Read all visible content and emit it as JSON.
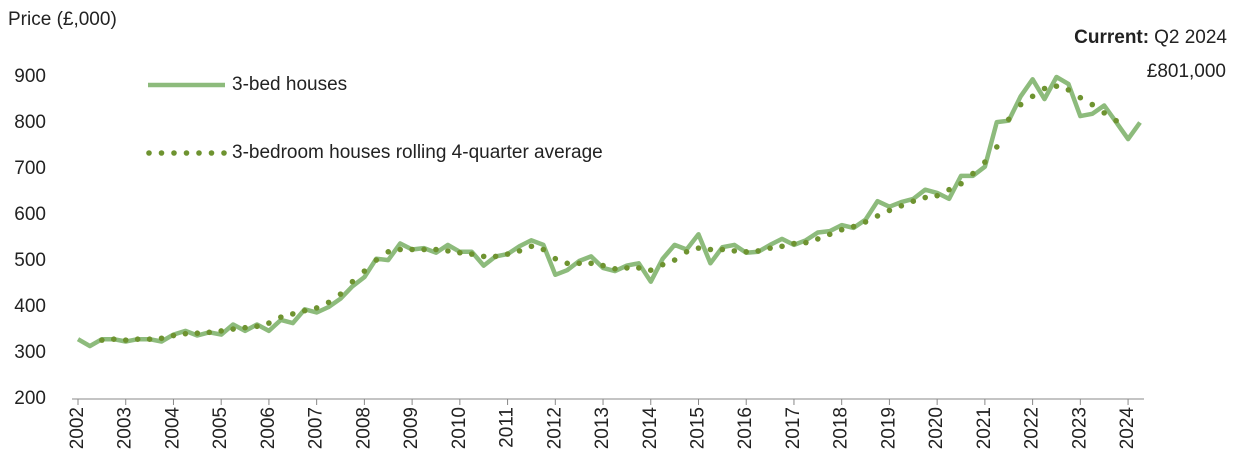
{
  "chart_data": {
    "type": "line",
    "y_label": "Price (£,000)",
    "annotation": {
      "label": "Current:",
      "period": "Q2 2024",
      "value_text": "£801,000"
    },
    "categories": [
      "2002",
      null,
      null,
      null,
      "2003",
      null,
      null,
      null,
      "2004",
      null,
      null,
      null,
      "2005",
      null,
      null,
      null,
      "2006",
      null,
      null,
      null,
      "2007",
      null,
      null,
      null,
      "2008",
      null,
      null,
      null,
      "2009",
      null,
      null,
      null,
      "2010",
      null,
      null,
      null,
      "2011",
      null,
      null,
      null,
      "2012",
      null,
      null,
      null,
      "2013",
      null,
      null,
      null,
      "2014",
      null,
      null,
      null,
      "2015",
      null,
      null,
      null,
      "2016",
      null,
      null,
      null,
      "2017",
      null,
      null,
      null,
      "2018",
      null,
      null,
      null,
      "2019",
      null,
      null,
      null,
      "2020",
      null,
      null,
      null,
      "2021",
      null,
      null,
      null,
      "2022",
      null,
      null,
      null,
      "2023",
      null,
      null,
      null,
      "2024",
      null
    ],
    "series": [
      {
        "name": "3-bed houses",
        "color": "#8dbb7c",
        "style": "solid",
        "values": [
          330,
          315,
          330,
          330,
          325,
          330,
          330,
          325,
          340,
          348,
          338,
          345,
          340,
          362,
          348,
          362,
          348,
          372,
          365,
          395,
          388,
          400,
          418,
          445,
          465,
          505,
          502,
          538,
          525,
          528,
          518,
          535,
          520,
          520,
          490,
          510,
          515,
          532,
          545,
          535,
          470,
          480,
          500,
          510,
          485,
          478,
          490,
          495,
          455,
          505,
          535,
          525,
          558,
          495,
          530,
          535,
          518,
          520,
          535,
          548,
          535,
          545,
          562,
          565,
          578,
          572,
          590,
          630,
          618,
          628,
          635,
          655,
          648,
          635,
          685,
          685,
          705,
          802,
          805,
          858,
          895,
          852,
          900,
          885,
          815,
          820,
          838,
          802,
          765,
          801
        ]
      },
      {
        "name": "3-bedroom houses rolling 4-quarter average",
        "color": "#6e9330",
        "style": "dotted",
        "values": [
          null,
          null,
          328,
          330,
          328,
          330,
          330,
          332,
          338,
          342,
          343,
          345,
          348,
          352,
          355,
          358,
          365,
          378,
          385,
          392,
          398,
          410,
          428,
          455,
          478,
          502,
          520,
          525,
          525,
          525,
          525,
          522,
          518,
          515,
          510,
          510,
          515,
          522,
          532,
          525,
          505,
          495,
          495,
          495,
          490,
          483,
          485,
          485,
          480,
          492,
          502,
          520,
          528,
          525,
          525,
          522,
          520,
          522,
          528,
          532,
          538,
          540,
          548,
          558,
          568,
          575,
          585,
          598,
          610,
          620,
          630,
          638,
          642,
          655,
          668,
          690,
          715,
          748,
          808,
          840,
          858,
          875,
          880,
          872,
          855,
          840,
          822,
          805,
          null,
          null
        ]
      }
    ],
    "ylim": [
      200,
      900
    ],
    "yticks": [
      200,
      300,
      400,
      500,
      600,
      700,
      800,
      900
    ],
    "grid": false,
    "legend": "upper-left"
  }
}
